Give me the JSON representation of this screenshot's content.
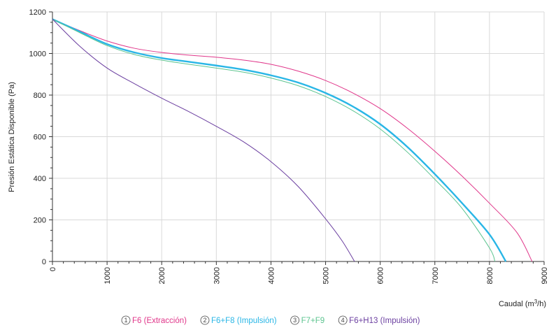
{
  "chart_data": {
    "type": "line",
    "xlabel_main": "Caudal (m",
    "xlabel_sup": "3",
    "xlabel_end": "/h)",
    "ylabel": "Presión Estática Disponible (Pa)",
    "xlim": [
      0,
      9000
    ],
    "ylim": [
      0,
      1200
    ],
    "x_ticks": [
      0,
      1000,
      2000,
      3000,
      4000,
      5000,
      6000,
      7000,
      8000,
      9000
    ],
    "y_ticks": [
      0,
      200,
      400,
      600,
      800,
      1000,
      1200
    ],
    "grid": true,
    "legend_position": "bottom",
    "series": [
      {
        "number": "1",
        "name": "F6 (Extracción)",
        "color": "#e0368a",
        "x": [
          0,
          500,
          1000,
          1500,
          2000,
          2500,
          3000,
          3500,
          4000,
          4500,
          5000,
          5500,
          6000,
          6500,
          7000,
          7500,
          8000,
          8500,
          8780
        ],
        "y": [
          1165,
          1110,
          1060,
          1025,
          1005,
          992,
          982,
          968,
          948,
          915,
          870,
          810,
          735,
          640,
          530,
          410,
          280,
          140,
          0
        ]
      },
      {
        "number": "2",
        "name": "F6+F8 (Impulsión)",
        "color": "#29b6e6",
        "x": [
          0,
          500,
          1000,
          1500,
          2000,
          2500,
          3000,
          3500,
          4000,
          4500,
          5000,
          5500,
          6000,
          6500,
          7000,
          7500,
          8000,
          8300
        ],
        "y": [
          1165,
          1105,
          1045,
          1005,
          978,
          960,
          942,
          922,
          895,
          860,
          810,
          745,
          660,
          550,
          420,
          280,
          130,
          0
        ]
      },
      {
        "number": "3",
        "name": "F7+F9",
        "color": "#5cc48f",
        "x": [
          0,
          500,
          1000,
          1500,
          2000,
          2500,
          3000,
          3500,
          4000,
          4500,
          5000,
          5500,
          6000,
          6500,
          7000,
          7500,
          8000,
          8100
        ],
        "y": [
          1165,
          1100,
          1038,
          995,
          968,
          948,
          930,
          910,
          882,
          845,
          793,
          725,
          637,
          525,
          395,
          255,
          65,
          0
        ]
      },
      {
        "number": "4",
        "name": "F6+H13 (Impulsión)",
        "color": "#6b3fa0",
        "x": [
          0,
          500,
          1000,
          1500,
          2000,
          2500,
          3000,
          3500,
          4000,
          4500,
          5000,
          5300,
          5530
        ],
        "y": [
          1165,
          1035,
          930,
          855,
          785,
          720,
          650,
          575,
          480,
          360,
          205,
          100,
          0
        ]
      }
    ]
  }
}
